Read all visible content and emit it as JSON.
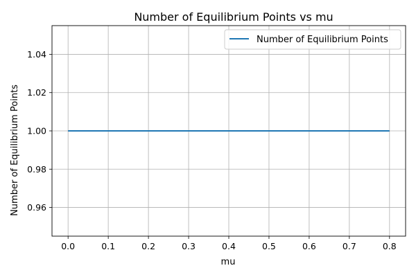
{
  "chart_data": {
    "type": "line",
    "title": "Number of Equilibrium Points vs mu",
    "xlabel": "mu",
    "ylabel": "Number of Equilibrium Points",
    "xlim": [
      -0.04,
      0.84
    ],
    "ylim": [
      0.945,
      1.055
    ],
    "xticks": [
      0.0,
      0.1,
      0.2,
      0.3,
      0.4,
      0.5,
      0.6,
      0.7,
      0.8
    ],
    "xtick_labels": [
      "0.0",
      "0.1",
      "0.2",
      "0.3",
      "0.4",
      "0.5",
      "0.6",
      "0.7",
      "0.8"
    ],
    "yticks": [
      0.96,
      0.98,
      1.0,
      1.02,
      1.04
    ],
    "ytick_labels": [
      "0.96",
      "0.98",
      "1.00",
      "1.02",
      "1.04"
    ],
    "grid": true,
    "legend_position": "top-right",
    "series": [
      {
        "name": "Number of Equilibrium Points",
        "color": "#1f77b4",
        "x": [
          0.0,
          0.8
        ],
        "y": [
          1.0,
          1.0
        ]
      }
    ]
  }
}
